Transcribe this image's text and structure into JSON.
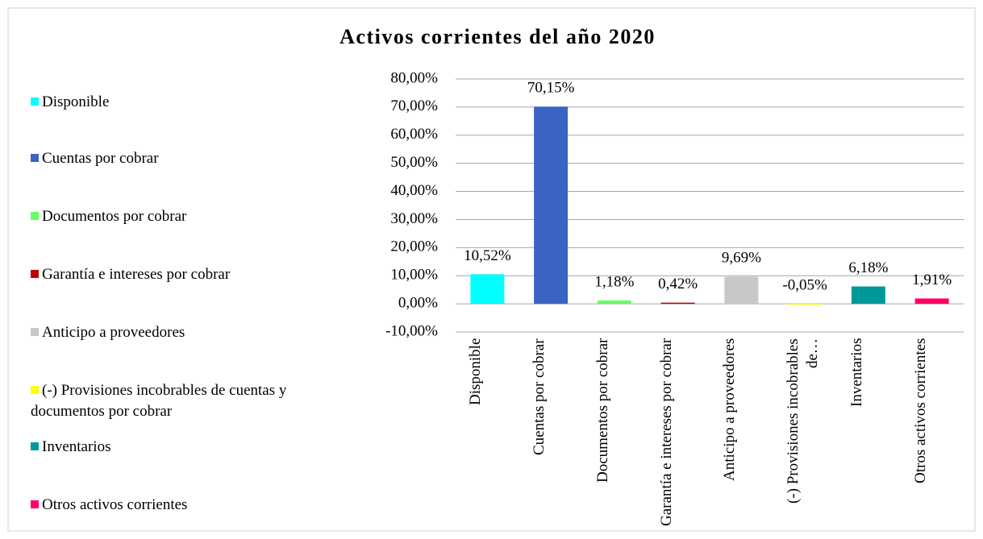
{
  "chart_data": {
    "type": "bar",
    "title": "Activos corrientes del año 2020",
    "categories": [
      "Disponible",
      "Cuentas por cobrar",
      "Documentos por cobrar",
      "Garantía e intereses por cobrar",
      "Anticipo a proveedores",
      "(-) Provisiones incobrables de cuentas y documentos por cobrar",
      "Inventarios",
      "Otros activos corrientes"
    ],
    "x_tick_labels": [
      "Disponible",
      "Cuentas por cobrar",
      "Documentos por cobrar",
      "Garantía e intereses por cobrar",
      "Anticipo a proveedores",
      "(-) Provisiones incobrables de…",
      "Inventarios",
      "Otros activos corrientes"
    ],
    "values": [
      10.52,
      70.15,
      1.18,
      0.42,
      9.69,
      -0.05,
      6.18,
      1.91
    ],
    "value_labels": [
      "10,52%",
      "70,15%",
      "1,18%",
      "0,42%",
      "9,69%",
      "-0,05%",
      "6,18%",
      "1,91%"
    ],
    "colors": [
      "#00ffff",
      "#3b63c4",
      "#66ff66",
      "#c00000",
      "#c8c8c8",
      "#ffff00",
      "#009999",
      "#ff0066"
    ],
    "ylim": [
      -10,
      80
    ],
    "yticks": [
      {
        "value": -10,
        "label": "-10,00%"
      },
      {
        "value": 0,
        "label": "0,00%"
      },
      {
        "value": 10,
        "label": "10,00%"
      },
      {
        "value": 20,
        "label": "20,00%"
      },
      {
        "value": 30,
        "label": "30,00%"
      },
      {
        "value": 40,
        "label": "40,00%"
      },
      {
        "value": 50,
        "label": "50,00%"
      },
      {
        "value": 60,
        "label": "60,00%"
      },
      {
        "value": 70,
        "label": "70,00%"
      },
      {
        "value": 80,
        "label": "80,00%"
      }
    ],
    "grid": true,
    "legend": "left"
  }
}
